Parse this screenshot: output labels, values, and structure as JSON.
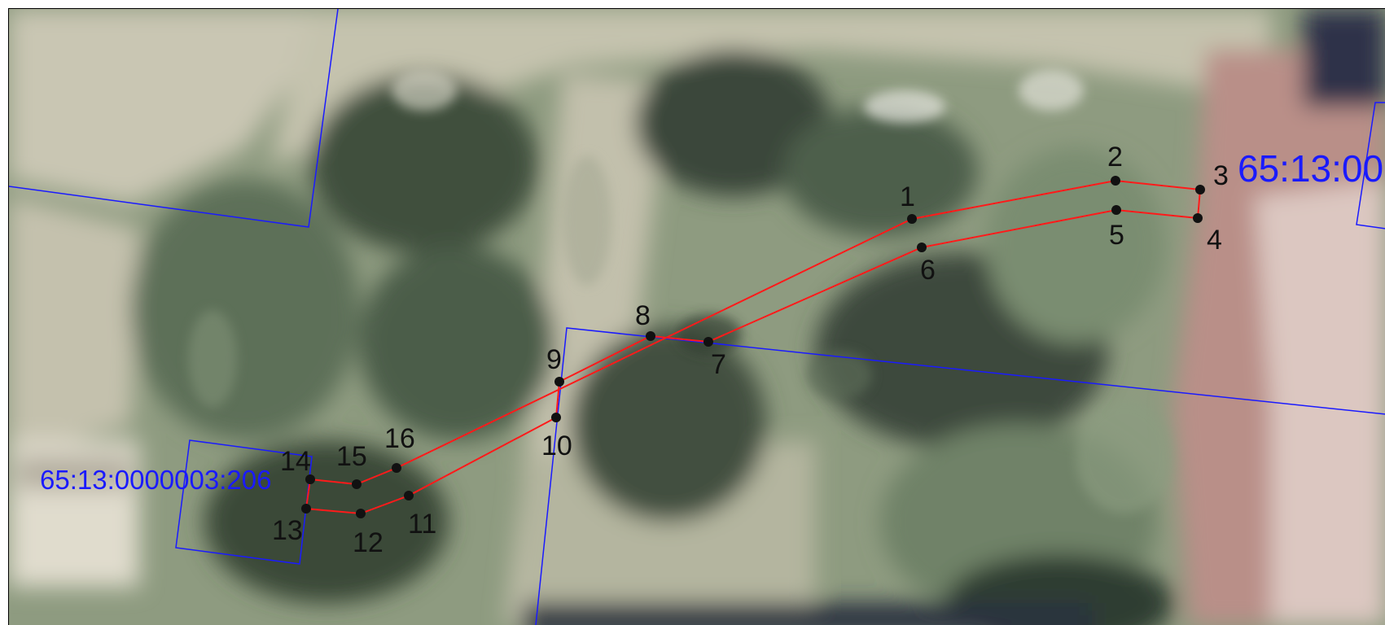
{
  "parcels": [
    {
      "cadastral_number": "65:13:0000003:206"
    },
    {
      "cadastral_number": "65:13:00"
    }
  ],
  "boundary_points": [
    "1",
    "2",
    "3",
    "4",
    "5",
    "6",
    "7",
    "8",
    "9",
    "10",
    "11",
    "12",
    "13",
    "14",
    "15",
    "16"
  ],
  "colors": {
    "boundary": "#ff1a1a",
    "parcel_lines": "#1a1aff",
    "point_marker": "#111111"
  }
}
